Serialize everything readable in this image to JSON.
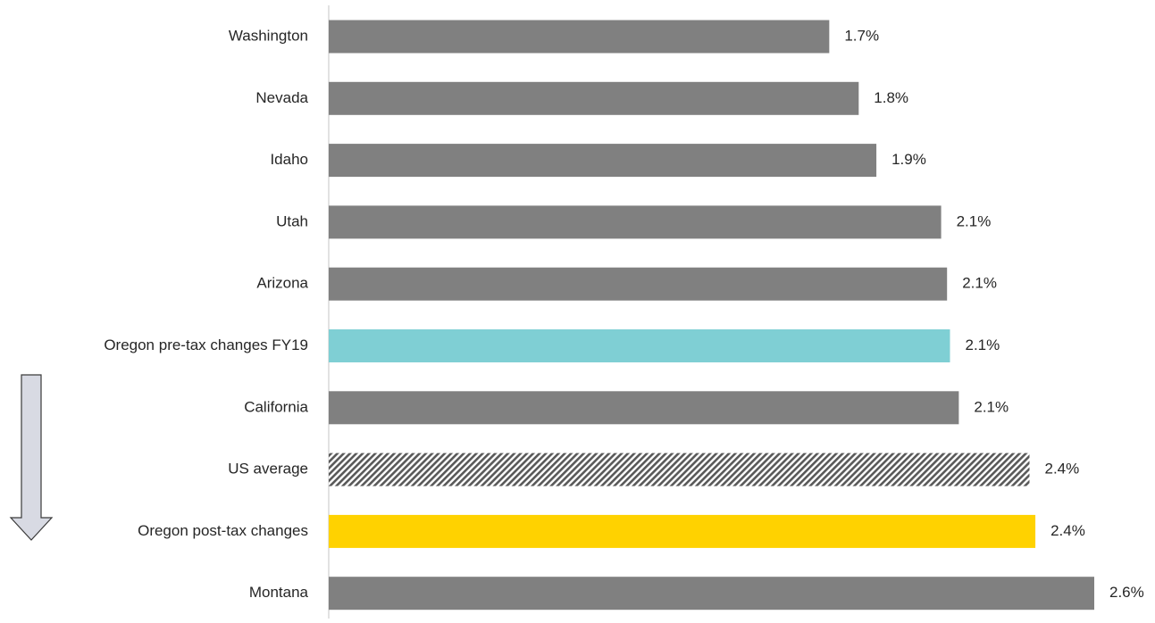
{
  "chart_data": {
    "type": "barh",
    "categories": [
      "Washington",
      "Nevada",
      "Idaho",
      "Utah",
      "Arizona",
      "Oregon pre-tax changes FY19",
      "California",
      "US average",
      "Oregon post-tax changes",
      "Montana"
    ],
    "values": [
      1.7,
      1.8,
      1.86,
      2.08,
      2.1,
      2.11,
      2.14,
      2.38,
      2.4,
      2.6
    ],
    "value_labels": [
      "1.7%",
      "1.8%",
      "1.9%",
      "2.1%",
      "2.1%",
      "2.1%",
      "2.1%",
      "2.4%",
      "2.4%",
      "2.6%"
    ],
    "colors": [
      "#808080",
      "#808080",
      "#808080",
      "#808080",
      "#808080",
      "#7fcfd4",
      "#808080",
      "#595959",
      "#ffd200",
      "#808080"
    ],
    "hatch": [
      false,
      false,
      false,
      false,
      false,
      false,
      false,
      true,
      false,
      false
    ],
    "xlim": [
      0,
      2.6
    ]
  }
}
